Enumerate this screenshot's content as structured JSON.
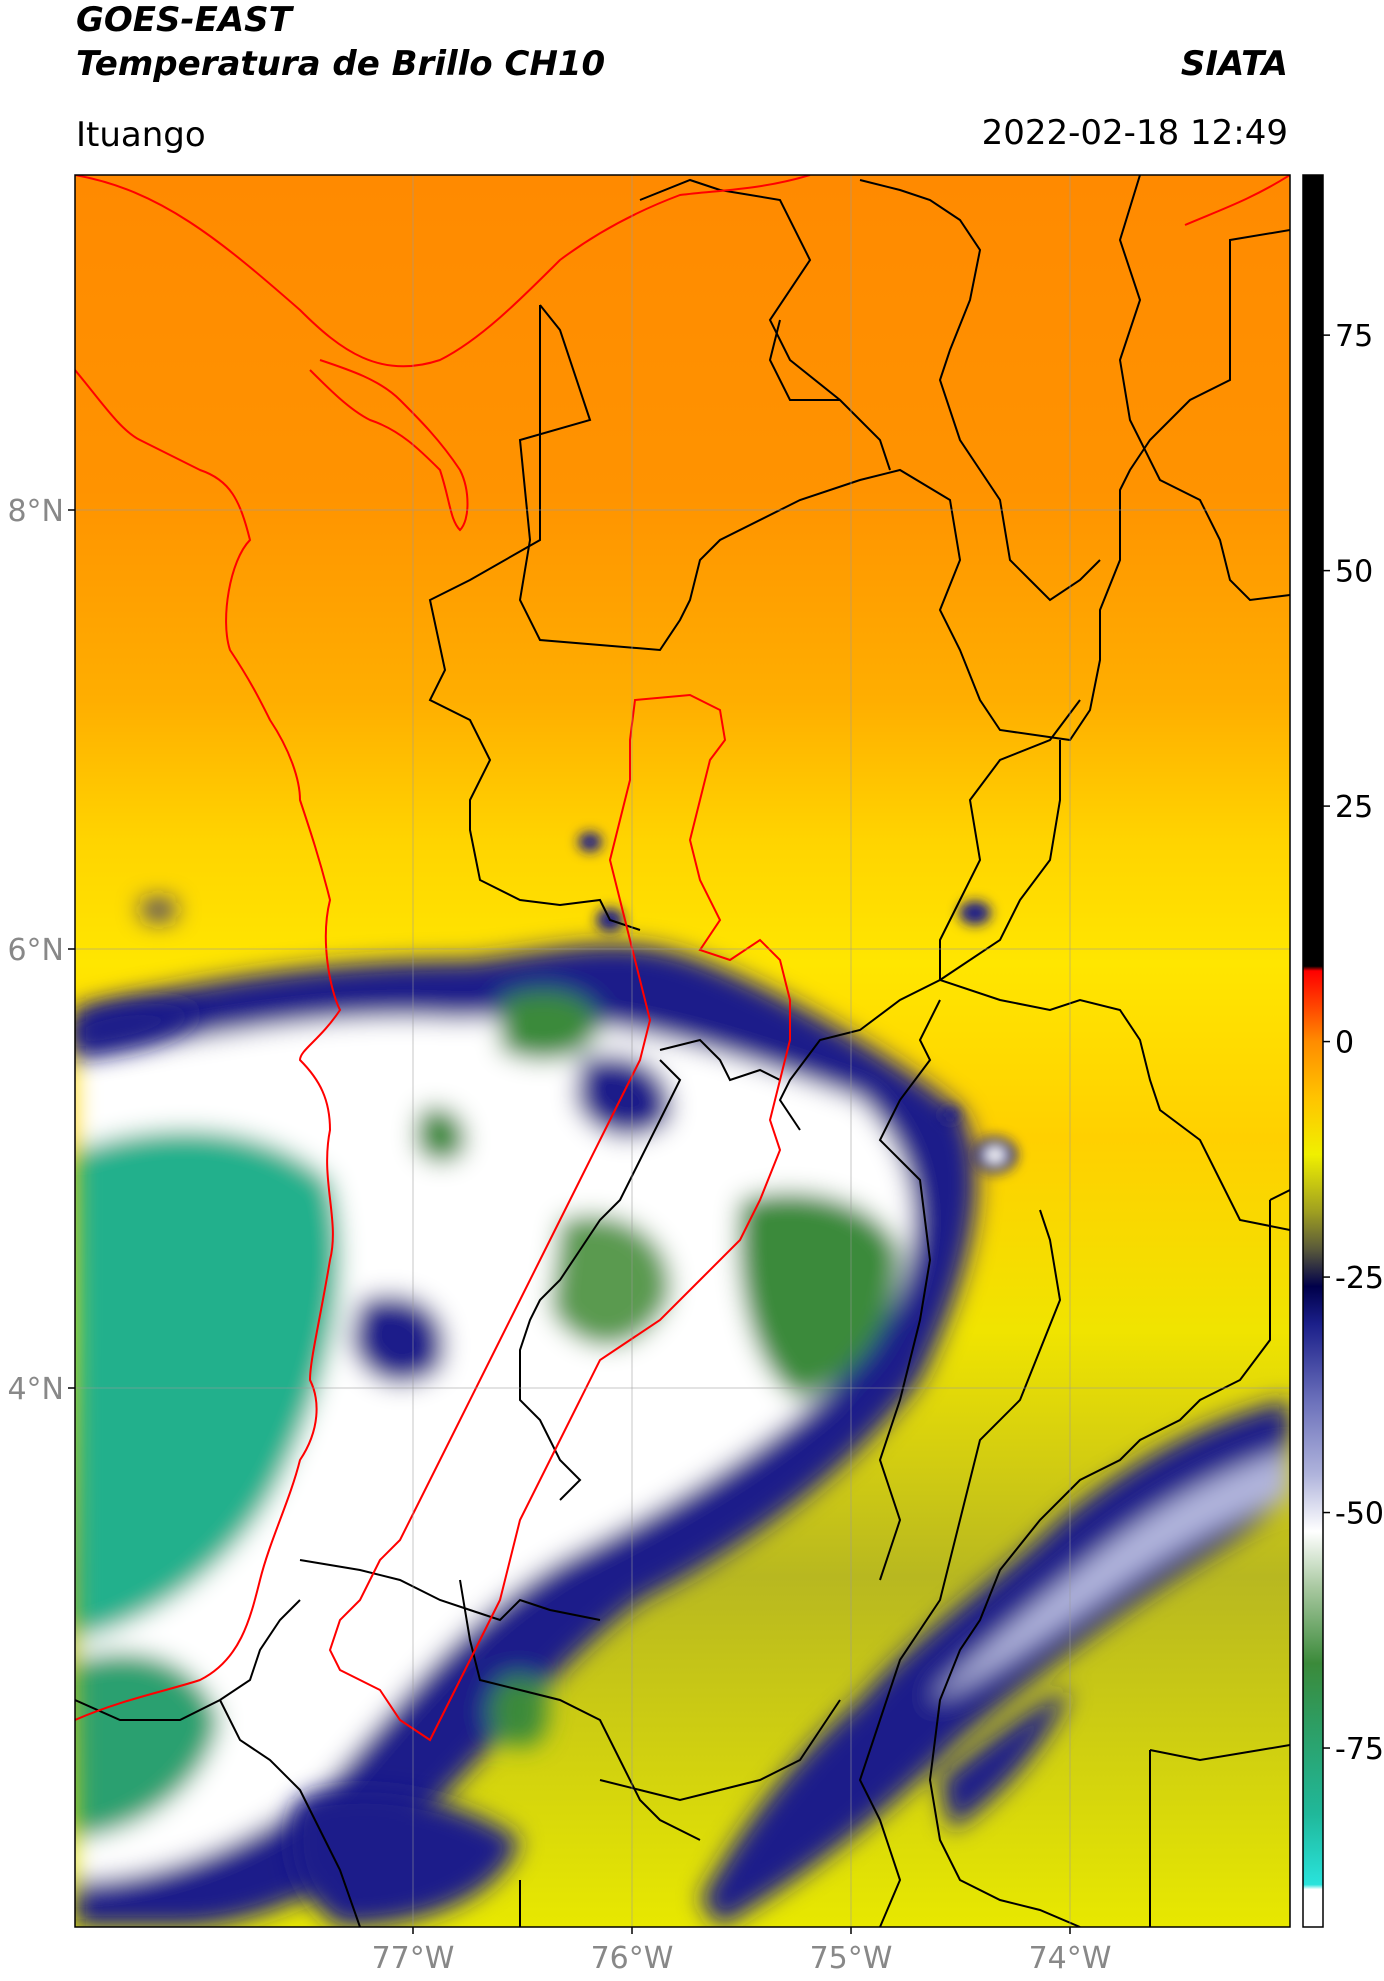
{
  "header": {
    "line1": "GOES-EAST",
    "line2": "Temperatura de Brillo CH10",
    "brand": "SIATA",
    "location": "Ituango",
    "timestamp": "2022-02-18 12:49"
  },
  "axes": {
    "lat_labels": [
      "8°N",
      "6°N",
      "4°N"
    ],
    "lon_labels": [
      "77°W",
      "76°W",
      "75°W",
      "74°W"
    ]
  },
  "colorbar": {
    "ticks": [
      "75",
      "50",
      "25",
      "0",
      "-25",
      "-50",
      "-75"
    ],
    "tick_values": [
      75,
      50,
      25,
      0,
      -25,
      -50,
      -75
    ],
    "range": [
      -94,
      92
    ],
    "stops": [
      {
        "v": -94,
        "c": "#ffffff"
      },
      {
        "v": -90,
        "c": "#ffffff"
      },
      {
        "v": -89.5,
        "c": "#29e3dc"
      },
      {
        "v": -82,
        "c": "#20b89a"
      },
      {
        "v": -72,
        "c": "#2e9c60"
      },
      {
        "v": -66,
        "c": "#3b8a3a"
      },
      {
        "v": -58,
        "c": "#a8c8a0"
      },
      {
        "v": -52,
        "c": "#ffffff"
      },
      {
        "v": -46,
        "c": "#b0b4dc"
      },
      {
        "v": -38,
        "c": "#6a6fba"
      },
      {
        "v": -30,
        "c": "#1b1f8a"
      },
      {
        "v": -26,
        "c": "#00004a"
      },
      {
        "v": -22,
        "c": "#5a5a3a"
      },
      {
        "v": -18,
        "c": "#a0a020"
      },
      {
        "v": -12,
        "c": "#f0f000"
      },
      {
        "v": -6,
        "c": "#ffc400"
      },
      {
        "v": 0,
        "c": "#ff8c00"
      },
      {
        "v": 4,
        "c": "#ff4000"
      },
      {
        "v": 7.5,
        "c": "#ff0000"
      },
      {
        "v": 8,
        "c": "#000000"
      },
      {
        "v": 92,
        "c": "#000000"
      }
    ]
  },
  "colors": {
    "country_border": "#ff0000",
    "admin_border": "#000000",
    "grid": "#999999"
  }
}
